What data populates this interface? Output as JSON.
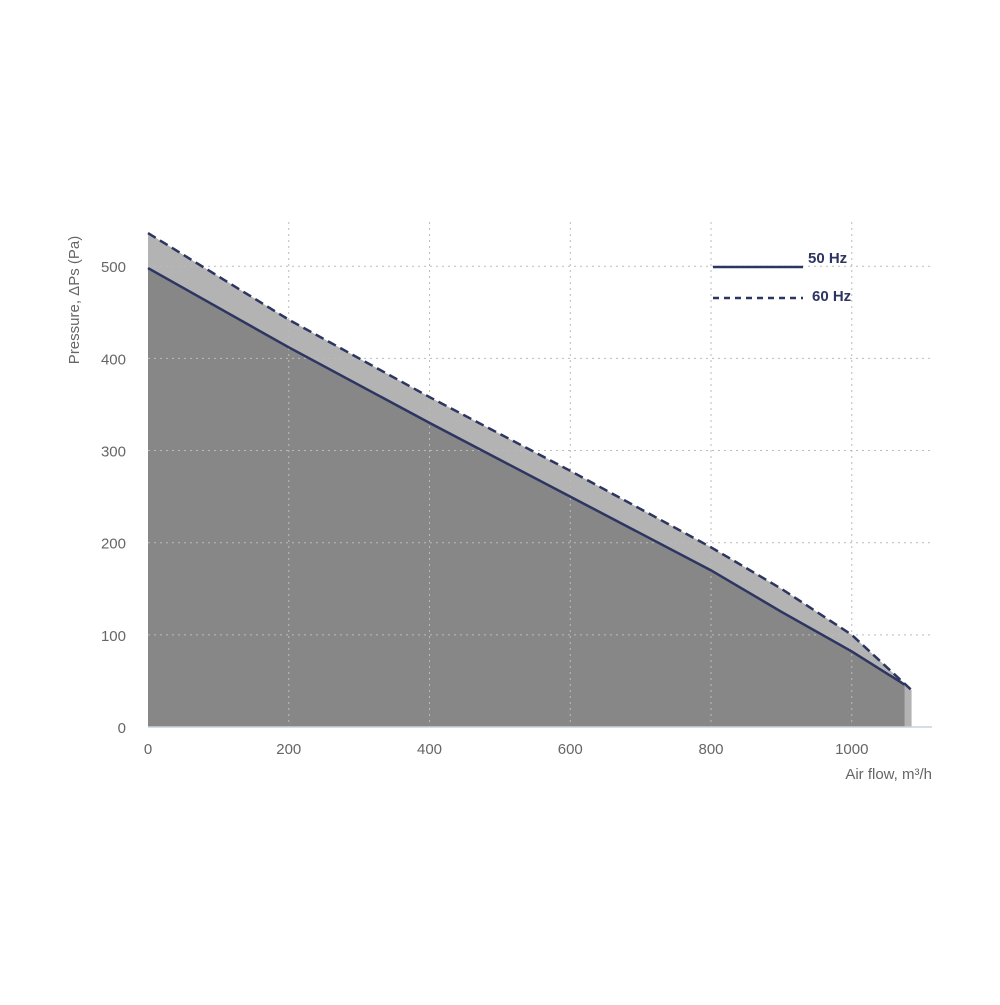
{
  "chart_data": {
    "type": "line",
    "x_label": "Air flow, m³/h",
    "y_label": "Pressure, ΔPs (Pa)",
    "series": [
      {
        "name": "50 Hz",
        "color": "#2d3561",
        "fill": "#878787",
        "dash": false,
        "x": [
          0,
          200,
          400,
          600,
          800,
          900,
          1000,
          1075
        ],
        "values": [
          498,
          412,
          330,
          250,
          170,
          125,
          82,
          46
        ]
      },
      {
        "name": "60 Hz",
        "color": "#2d3561",
        "fill": "#b3b3b3",
        "dash": true,
        "x": [
          0,
          200,
          400,
          600,
          800,
          900,
          1000,
          1085
        ],
        "values": [
          536,
          442,
          358,
          278,
          195,
          150,
          100,
          40
        ]
      }
    ],
    "xlim": [
      0,
      1114
    ],
    "ylim": [
      0,
      548
    ],
    "xticks": [
      0,
      200,
      400,
      600,
      800,
      1000
    ],
    "yticks": [
      0,
      100,
      200,
      300,
      400,
      500
    ],
    "grid": true
  }
}
